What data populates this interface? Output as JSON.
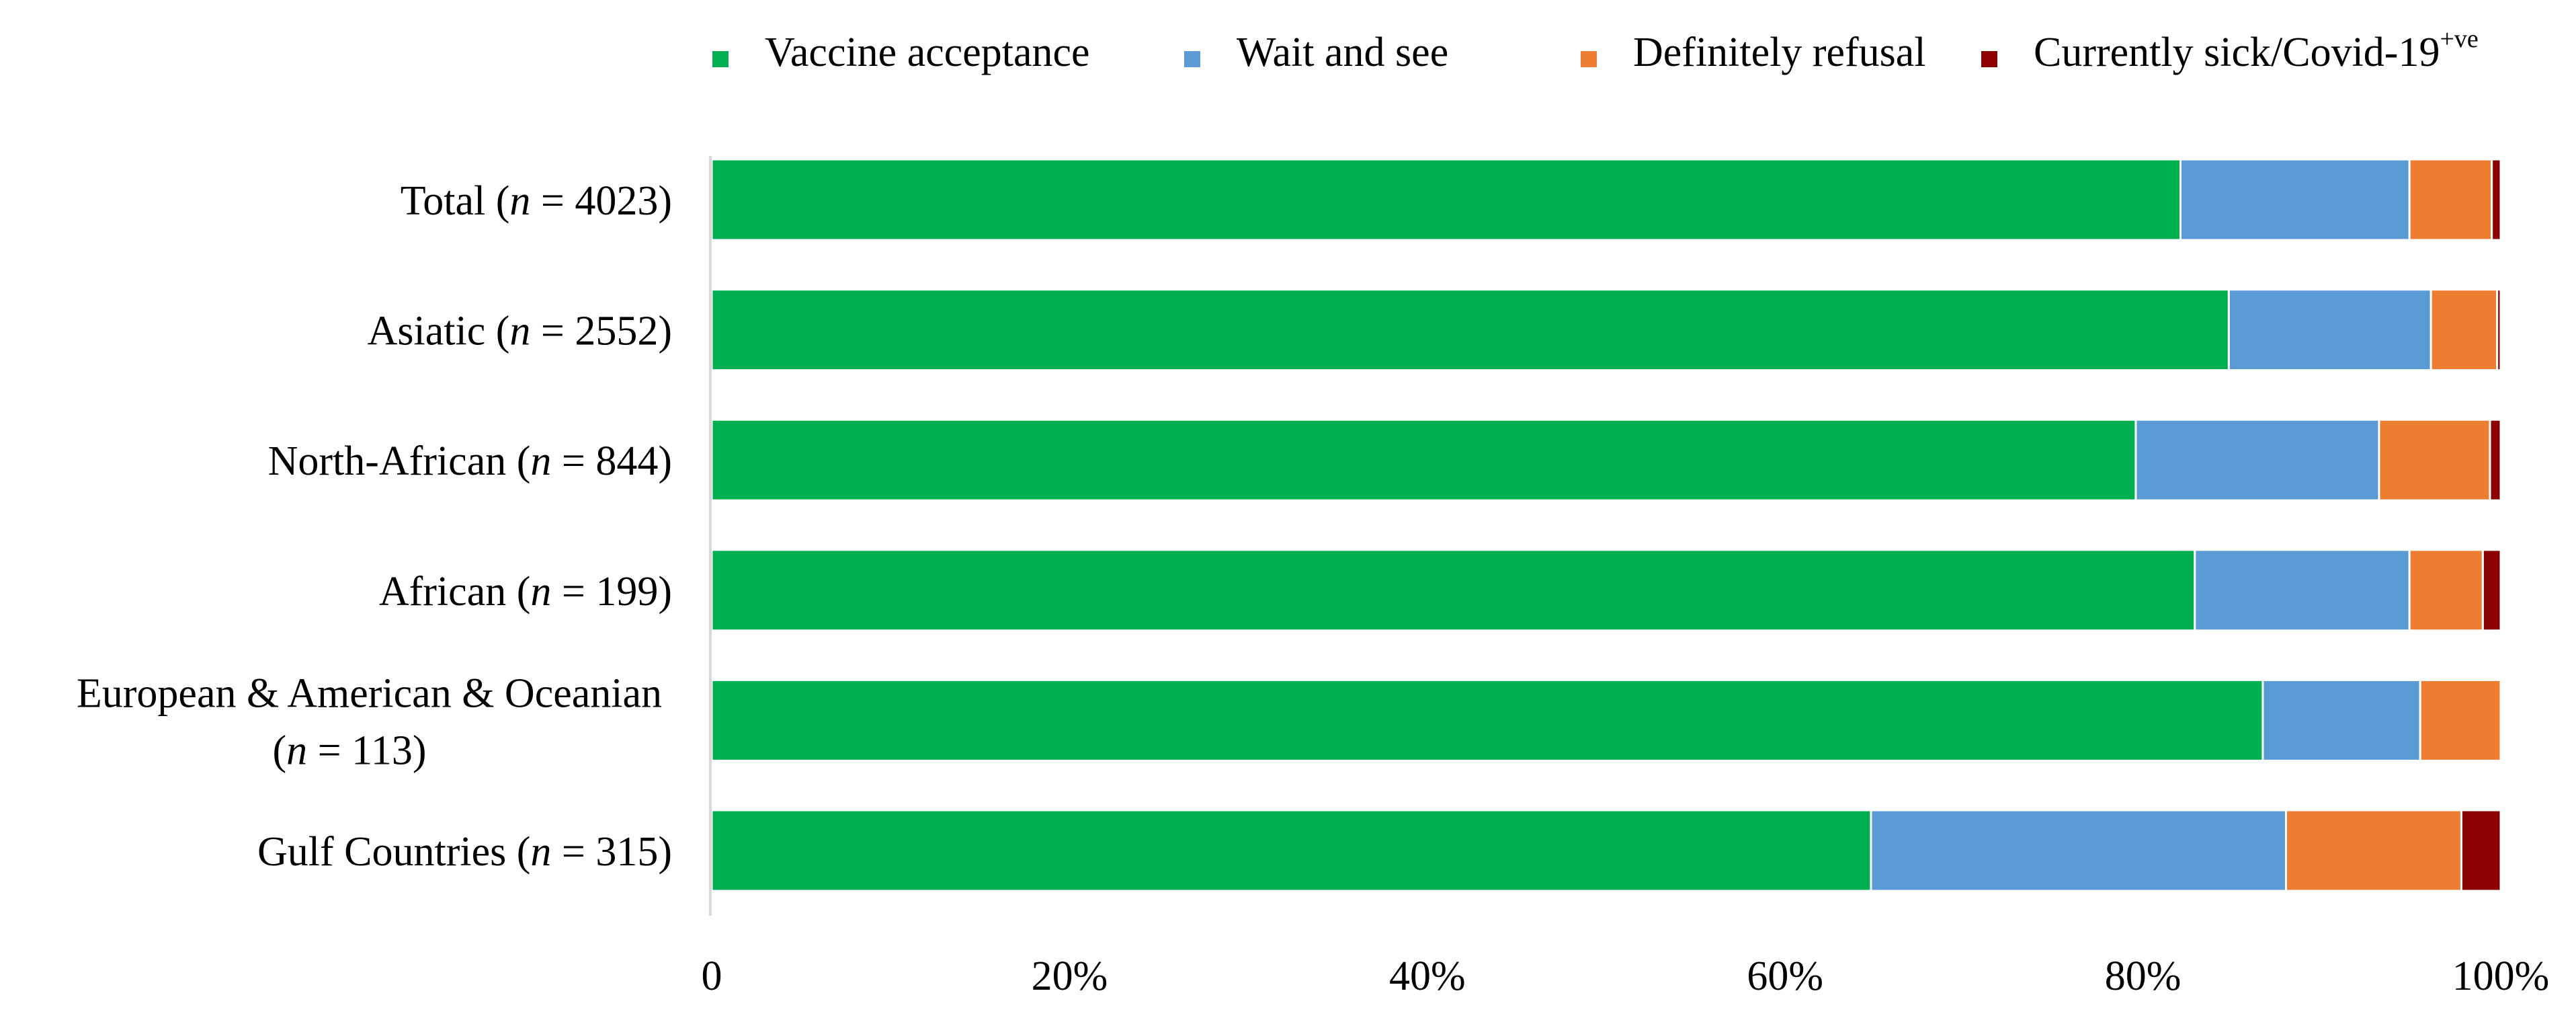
{
  "chart_data": {
    "type": "bar",
    "orientation": "horizontal",
    "stacked": true,
    "title": "",
    "xlabel": "",
    "ylabel": "",
    "xlim": [
      0,
      100
    ],
    "x_ticks": [
      "0",
      "20%",
      "40%",
      "60%",
      "80%",
      "100%"
    ],
    "legend_position": "top",
    "grid": false,
    "categories": [
      {
        "main": "Total (",
        "n": "n",
        "rest": " = 4023)"
      },
      {
        "main": "Asiatic (",
        "n": "n",
        "rest": " = 2552)"
      },
      {
        "main": "North-African (",
        "n": "n",
        "rest": " = 844)"
      },
      {
        "main": "African (",
        "n": "n",
        "rest": " = 199)"
      },
      {
        "main": "European & American & Oceanian",
        "line2_main": "(",
        "n": "n",
        "rest": " = 113)"
      },
      {
        "main": "Gulf Countries (",
        "n": "n",
        "rest": " = 315)"
      }
    ],
    "series": [
      {
        "name": "Vaccine acceptance",
        "sup": "",
        "color": "#00b050",
        "values": [
          82.1,
          84.8,
          79.6,
          82.9,
          86.7,
          64.8
        ]
      },
      {
        "name": "Wait and see",
        "sup": "",
        "color": "#5b9bd5",
        "values": [
          12.8,
          11.3,
          13.6,
          12.0,
          8.8,
          23.2
        ]
      },
      {
        "name": "Definitely refusal",
        "sup": "",
        "color": "#ed7d31",
        "values": [
          4.6,
          3.7,
          6.2,
          4.1,
          4.5,
          9.8
        ]
      },
      {
        "name": "Currently sick/Covid-19",
        "sup": "+ve",
        "color": "#8b0000",
        "values": [
          0.5,
          0.2,
          0.6,
          1.0,
          0.0,
          2.2
        ]
      }
    ]
  }
}
